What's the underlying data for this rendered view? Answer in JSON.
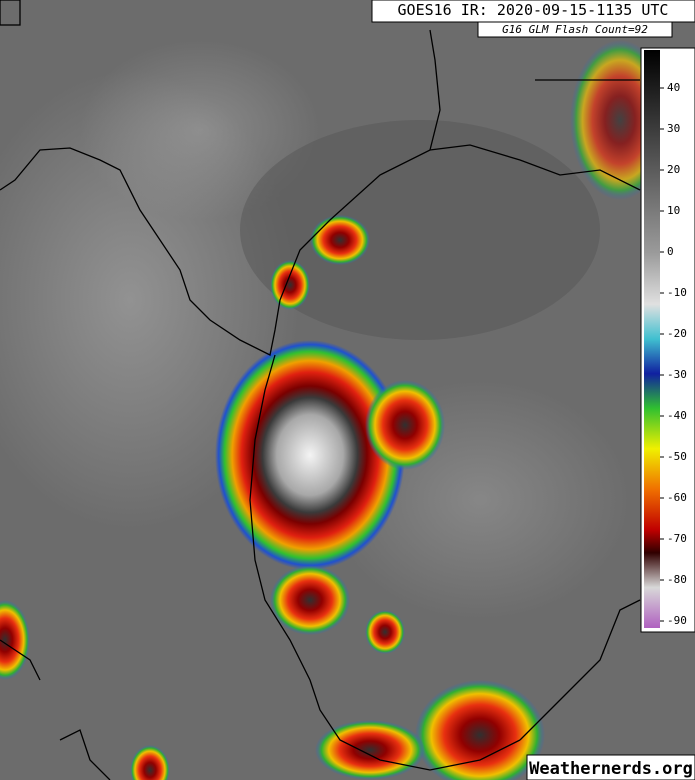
{
  "header": {
    "title": "GOES16 IR: 2020-09-15-1135 UTC",
    "subtitle": "G16 GLM Flash Count=92"
  },
  "colorbar": {
    "ticks": [
      40,
      30,
      20,
      10,
      0,
      -10,
      -20,
      -30,
      -40,
      -50,
      -60,
      -70,
      -80,
      -90
    ]
  },
  "footer": {
    "watermark": "Weathernerds.org"
  }
}
